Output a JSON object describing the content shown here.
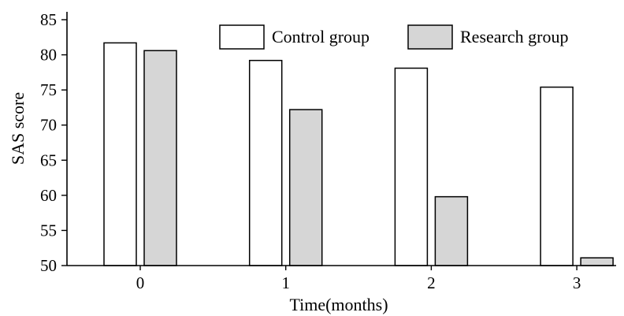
{
  "chart_data": {
    "type": "bar",
    "xlabel": "Time(months)",
    "ylabel": "SAS score",
    "categories": [
      "0",
      "1",
      "2",
      "3"
    ],
    "ylim": [
      50,
      85
    ],
    "yticks": [
      50,
      55,
      60,
      65,
      70,
      75,
      80,
      85
    ],
    "series": [
      {
        "name": "Control group",
        "values": [
          81.7,
          79.2,
          78.1,
          75.4
        ]
      },
      {
        "name": "Research group",
        "values": [
          80.6,
          72.2,
          59.8,
          51.1
        ]
      }
    ],
    "legend": "top-right",
    "grid": false
  },
  "colors": {
    "control": "#ffffff",
    "research": "#d6d6d6",
    "stroke": "#000000"
  }
}
